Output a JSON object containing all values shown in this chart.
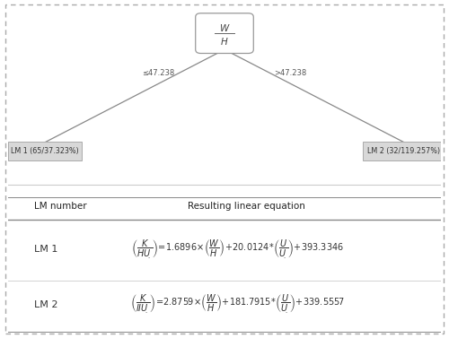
{
  "fig_width": 5.0,
  "fig_height": 3.77,
  "dpi": 100,
  "tree_bg": "#e6e6e6",
  "left_condition": "≤47.238",
  "right_condition": ">47.238",
  "left_leaf": "LM 1 (65/37.323%)",
  "right_leaf": "LM 2 (32/119.257%)",
  "table_header_col1": "LM number",
  "table_header_col2": "Resulting linear equation",
  "lm1_label": "LM 1",
  "lm2_label": "LM 2"
}
